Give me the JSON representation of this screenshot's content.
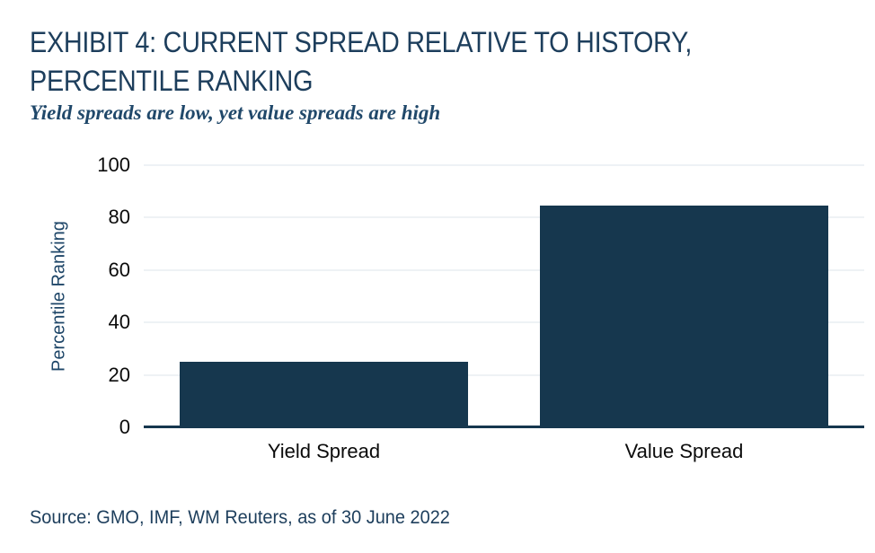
{
  "page": {
    "title_line1": "EXHIBIT 4: CURRENT SPREAD RELATIVE TO HISTORY,",
    "title_line2": "PERCENTILE RANKING",
    "subtitle": "Yield spreads are low, yet value spreads are high",
    "source": "Source: GMO, IMF, WM Reuters, as of 30 June 2022"
  },
  "colors": {
    "bar": "#16374E",
    "title_text": "#1D3E5C",
    "subtitle_text": "#20486A",
    "axis_label_text": "#1E4668",
    "tick_text": "#0B0B0B",
    "gridline": "#DCE5EB",
    "baseline": "#16374E",
    "background": "#FFFFFF"
  },
  "chart_data": {
    "type": "bar",
    "title": "EXHIBIT 4: CURRENT SPREAD RELATIVE TO HISTORY, PERCENTILE RANKING",
    "subtitle": "Yield spreads are low, yet value spreads are high",
    "categories": [
      "Yield Spread",
      "Value Spread"
    ],
    "values": [
      25,
      84.5
    ],
    "xlabel": "",
    "ylabel": "Percentile Ranking",
    "ylim": [
      0,
      100
    ],
    "yticks": [
      0,
      20,
      40,
      60,
      80,
      100
    ],
    "grid": "horizontal",
    "legend": "none",
    "bar_width_fraction": 0.8,
    "source": "Source: GMO, IMF, WM Reuters, as of 30 June 2022"
  }
}
